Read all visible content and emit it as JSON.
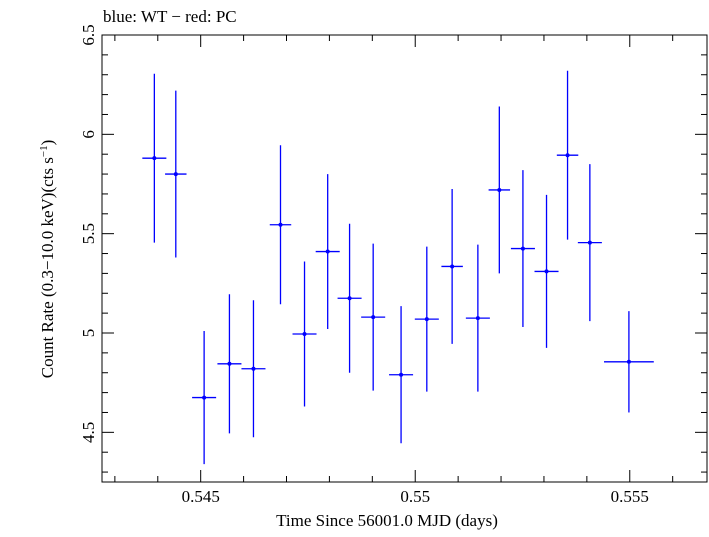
{
  "chart_data": {
    "type": "scatter",
    "title": "blue: WT − red: PC",
    "xlabel": "Time Since 56001.0 MJD (days)",
    "ylabel_main": "Count Rate (0.3−10.0 keV)(cts s",
    "ylabel_sup": "−1",
    "ylabel_close": ")",
    "xlim": [
      0.5427,
      0.5568
    ],
    "ylim": [
      4.25,
      6.5
    ],
    "x_ticks": [
      {
        "value": 0.545,
        "label": "0.545"
      },
      {
        "value": 0.55,
        "label": "0.55"
      },
      {
        "value": 0.555,
        "label": "0.555"
      }
    ],
    "x_minor_step": 0.001,
    "y_ticks": [
      {
        "value": 4.5,
        "label": "4.5"
      },
      {
        "value": 5,
        "label": "5"
      },
      {
        "value": 5.5,
        "label": "5.5"
      },
      {
        "value": 6,
        "label": "6"
      },
      {
        "value": 6.5,
        "label": "6.5"
      }
    ],
    "y_minor_step": 0.1,
    "grid": false,
    "series": [
      {
        "color": "#0000ff",
        "points": [
          {
            "x": 0.54392,
            "xerr": 0.00028,
            "y": 5.88,
            "yerr": 0.425
          },
          {
            "x": 0.54442,
            "xerr": 0.00025,
            "y": 5.8,
            "yerr": 0.42
          },
          {
            "x": 0.54508,
            "xerr": 0.00028,
            "y": 4.675,
            "yerr": 0.335
          },
          {
            "x": 0.54567,
            "xerr": 0.00028,
            "y": 4.845,
            "yerr": 0.35
          },
          {
            "x": 0.54623,
            "xerr": 0.00028,
            "y": 4.82,
            "yerr": 0.345
          },
          {
            "x": 0.54686,
            "xerr": 0.00025,
            "y": 5.545,
            "yerr": 0.4
          },
          {
            "x": 0.54742,
            "xerr": 0.00028,
            "y": 4.995,
            "yerr": 0.365
          },
          {
            "x": 0.54796,
            "xerr": 0.00028,
            "y": 5.41,
            "yerr": 0.39
          },
          {
            "x": 0.54847,
            "xerr": 0.00028,
            "y": 5.175,
            "yerr": 0.375
          },
          {
            "x": 0.54902,
            "xerr": 0.00028,
            "y": 5.08,
            "yerr": 0.37
          },
          {
            "x": 0.54967,
            "xerr": 0.00028,
            "y": 4.79,
            "yerr": 0.345
          },
          {
            "x": 0.55027,
            "xerr": 0.00028,
            "y": 5.07,
            "yerr": 0.365
          },
          {
            "x": 0.55086,
            "xerr": 0.00025,
            "y": 5.335,
            "yerr": 0.39
          },
          {
            "x": 0.55146,
            "xerr": 0.00028,
            "y": 5.075,
            "yerr": 0.37
          },
          {
            "x": 0.55196,
            "xerr": 0.00025,
            "y": 5.72,
            "yerr": 0.42
          },
          {
            "x": 0.55251,
            "xerr": 0.00028,
            "y": 5.425,
            "yerr": 0.395
          },
          {
            "x": 0.55306,
            "xerr": 0.00028,
            "y": 5.31,
            "yerr": 0.385
          },
          {
            "x": 0.55355,
            "xerr": 0.00025,
            "y": 5.895,
            "yerr": 0.425
          },
          {
            "x": 0.55407,
            "xerr": 0.00028,
            "y": 5.455,
            "yerr": 0.395
          },
          {
            "x": 0.55498,
            "xerr": 0.00058,
            "y": 4.855,
            "yerr": 0.255
          }
        ]
      }
    ]
  }
}
